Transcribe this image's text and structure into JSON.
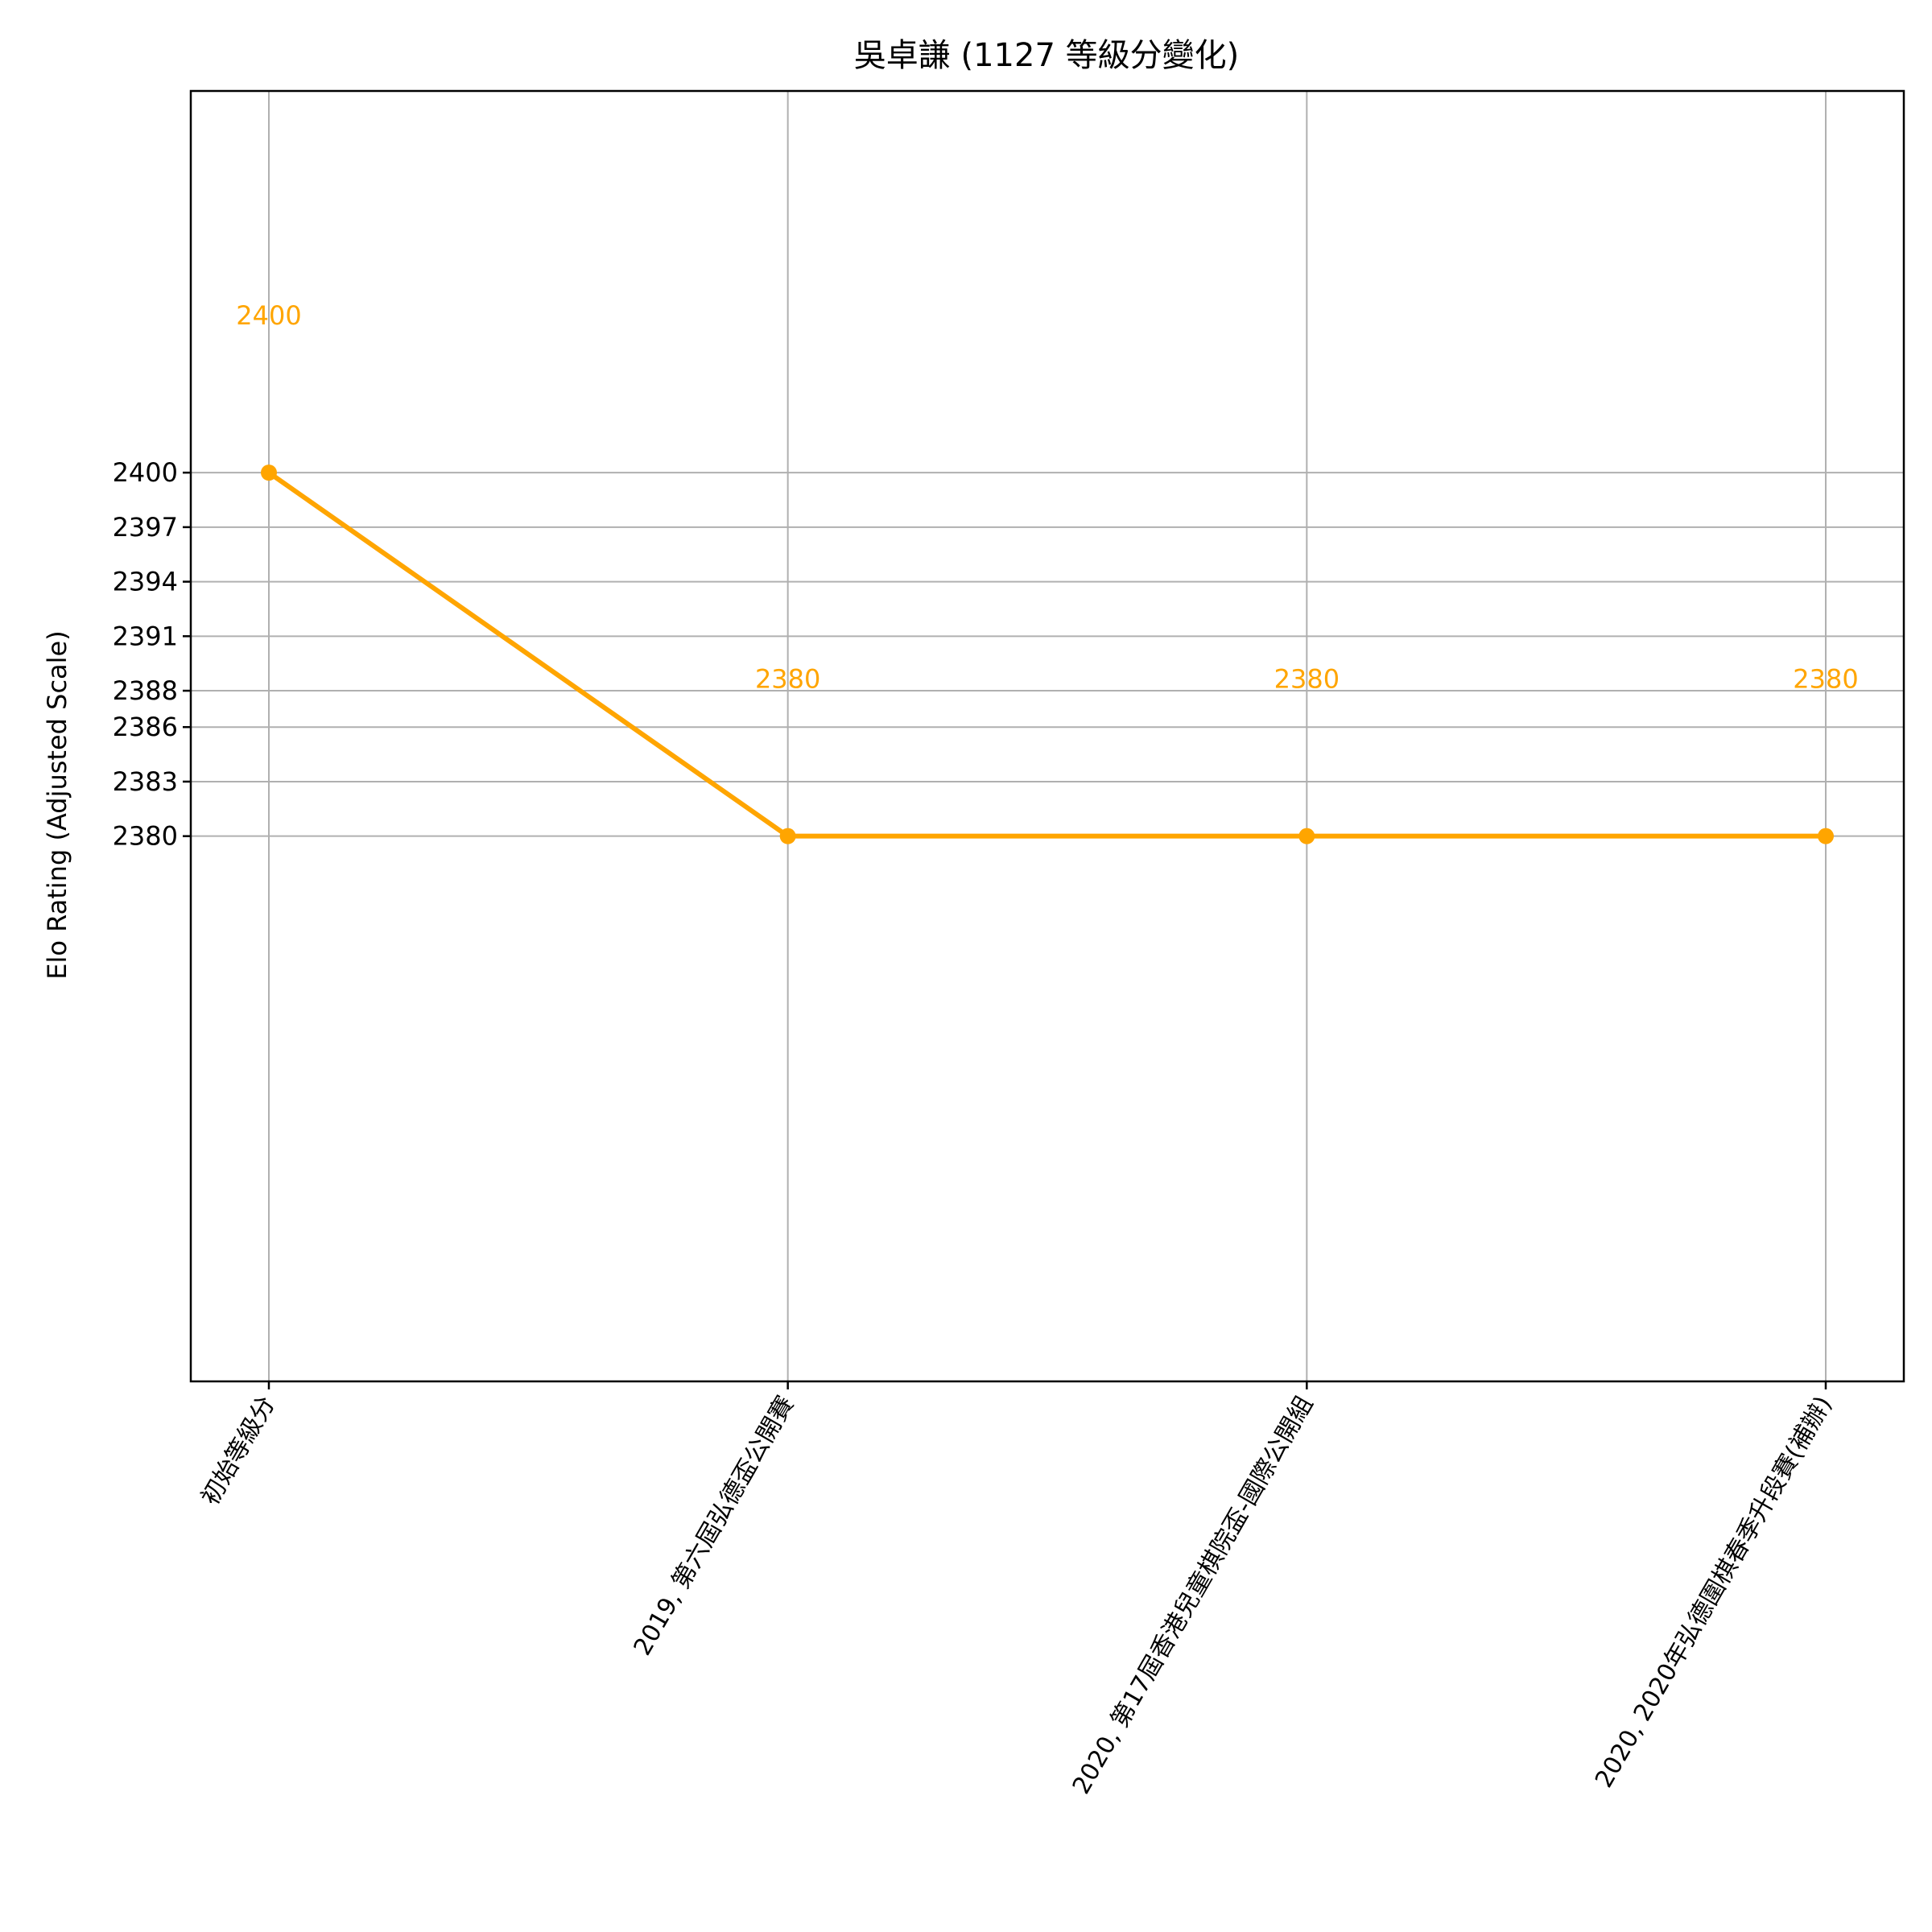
{
  "chart_data": {
    "type": "line",
    "title": "吳卓謙 (1127 等級分變化)",
    "xlabel": "",
    "ylabel": "Elo Rating (Adjusted Scale)",
    "categories": [
      "初始等級分",
      "2019, 第六屆弘德盃公開賽",
      "2020, 第17屆香港兒童棋院盃-國際公開組",
      "2020, 2020年弘德圍棋春季升段賽(補辦)"
    ],
    "series": [
      {
        "values": [
          2400,
          2380,
          2380,
          2380
        ],
        "color": "#FFA500"
      }
    ],
    "data_labels": [
      "2400",
      "2380",
      "2380",
      "2380"
    ],
    "yticks": [
      2380,
      2383,
      2386,
      2388,
      2391,
      2394,
      2397,
      2400
    ],
    "ytick_labels": [
      "2380",
      "2383",
      "2386",
      "2388",
      "2391",
      "2394",
      "2397",
      "2400"
    ],
    "ylim": [
      2350,
      2421
    ],
    "grid": true,
    "legend": "none"
  }
}
